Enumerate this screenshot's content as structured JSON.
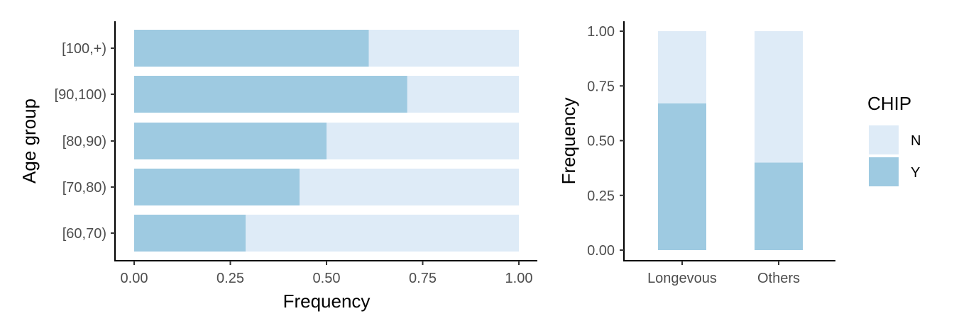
{
  "chart_data": [
    {
      "type": "bar",
      "orientation": "horizontal",
      "stacked": true,
      "categories": [
        "[60,70)",
        "[70,80)",
        "[80,90)",
        "[90,100)",
        "[100,+)"
      ],
      "series": [
        {
          "name": "Y",
          "values": [
            0.29,
            0.43,
            0.5,
            0.71,
            0.61
          ]
        },
        {
          "name": "N",
          "values": [
            0.71,
            0.57,
            0.5,
            0.29,
            0.39
          ]
        }
      ],
      "xlabel": "Frequency",
      "ylabel": "Age group",
      "xlim": [
        0,
        1
      ],
      "xticks": [
        "0.00",
        "0.25",
        "0.50",
        "0.75",
        "1.00"
      ],
      "grid": false
    },
    {
      "type": "bar",
      "orientation": "vertical",
      "stacked": true,
      "categories": [
        "Longevous",
        "Others"
      ],
      "series": [
        {
          "name": "Y",
          "values": [
            0.67,
            0.4
          ]
        },
        {
          "name": "N",
          "values": [
            0.33,
            0.6
          ]
        }
      ],
      "xlabel": "",
      "ylabel": "Frequency",
      "ylim": [
        0,
        1
      ],
      "yticks": [
        "0.00",
        "0.25",
        "0.50",
        "0.75",
        "1.00"
      ],
      "grid": false
    }
  ],
  "legend": {
    "title": "CHIP",
    "position": "right",
    "items": [
      {
        "label": "N",
        "color": "#deebf7"
      },
      {
        "label": "Y",
        "color": "#9ecae1"
      }
    ]
  },
  "colors": {
    "Y": "#9ecae1",
    "N": "#deebf7"
  }
}
